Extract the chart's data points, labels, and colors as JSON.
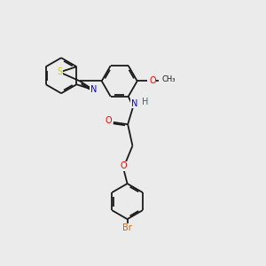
{
  "background_color": "#ebebeb",
  "bond_color": "#1a1a1a",
  "atom_colors": {
    "S": "#cccc00",
    "N": "#0000ff",
    "O": "#ff0000",
    "Br": "#cc6600",
    "H": "#008080",
    "C": "#1a1a1a"
  },
  "line_width": 1.3,
  "dbl_sep": 0.055,
  "r_ring": 0.68,
  "figsize": [
    3.0,
    3.0
  ],
  "dpi": 100,
  "xlim": [
    0,
    10
  ],
  "ylim": [
    0,
    10
  ]
}
